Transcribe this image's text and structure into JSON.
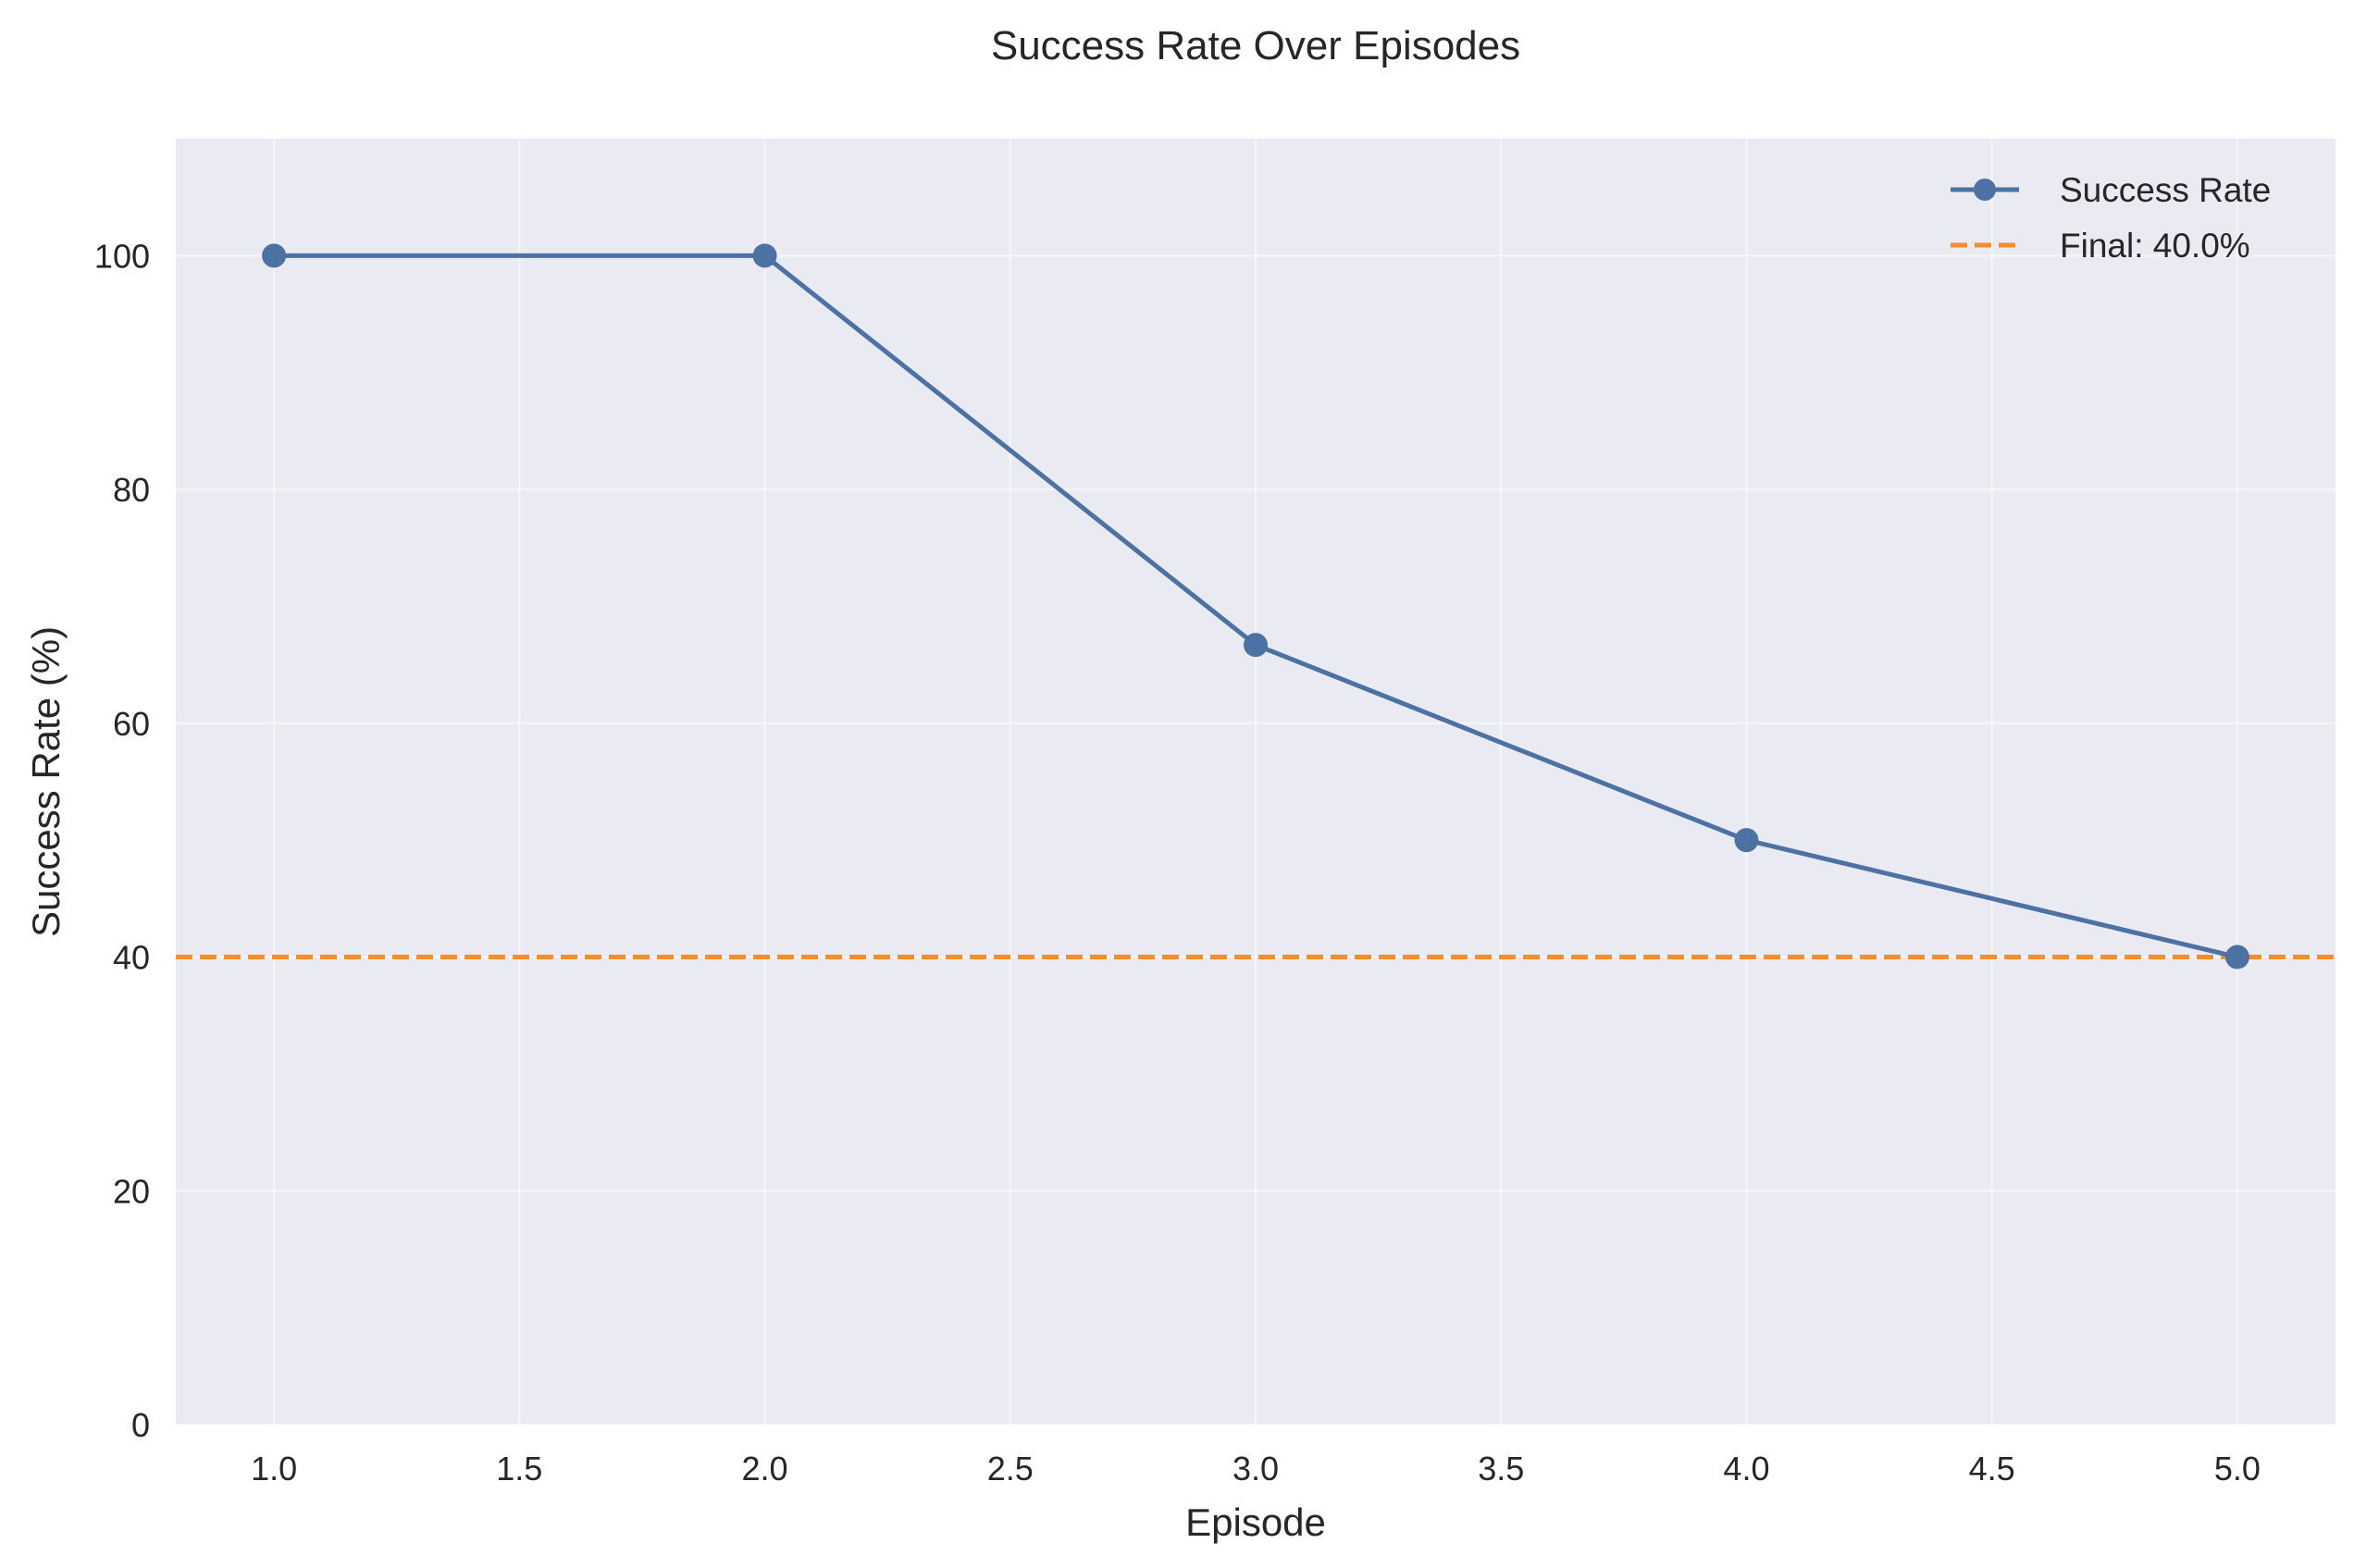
{
  "chart_data": {
    "type": "line",
    "title": "Success Rate Over Episodes",
    "xlabel": "Episode",
    "ylabel": "Success Rate (%)",
    "xlim": [
      0.8,
      5.2
    ],
    "ylim": [
      0,
      110
    ],
    "xticks": [
      1.0,
      1.5,
      2.0,
      2.5,
      3.0,
      3.5,
      4.0,
      4.5,
      5.0
    ],
    "xtick_labels": [
      "1.0",
      "1.5",
      "2.0",
      "2.5",
      "3.0",
      "3.5",
      "4.0",
      "4.5",
      "5.0"
    ],
    "yticks": [
      0,
      20,
      40,
      60,
      80,
      100
    ],
    "ytick_labels": [
      "0",
      "20",
      "40",
      "60",
      "80",
      "100"
    ],
    "grid": true,
    "legend_position": "top-right",
    "plot_background": "#eaeaf2",
    "series": [
      {
        "name": "Success Rate",
        "color": "#4c72a4",
        "marker": "circle",
        "x": [
          1,
          2,
          3,
          4,
          5
        ],
        "y": [
          100,
          100,
          66.7,
          50,
          40
        ]
      }
    ],
    "reference_lines": [
      {
        "name": "Final: 40.0%",
        "orientation": "horizontal",
        "y": 40,
        "color": "#f28e2b",
        "style": "dashed"
      }
    ]
  }
}
